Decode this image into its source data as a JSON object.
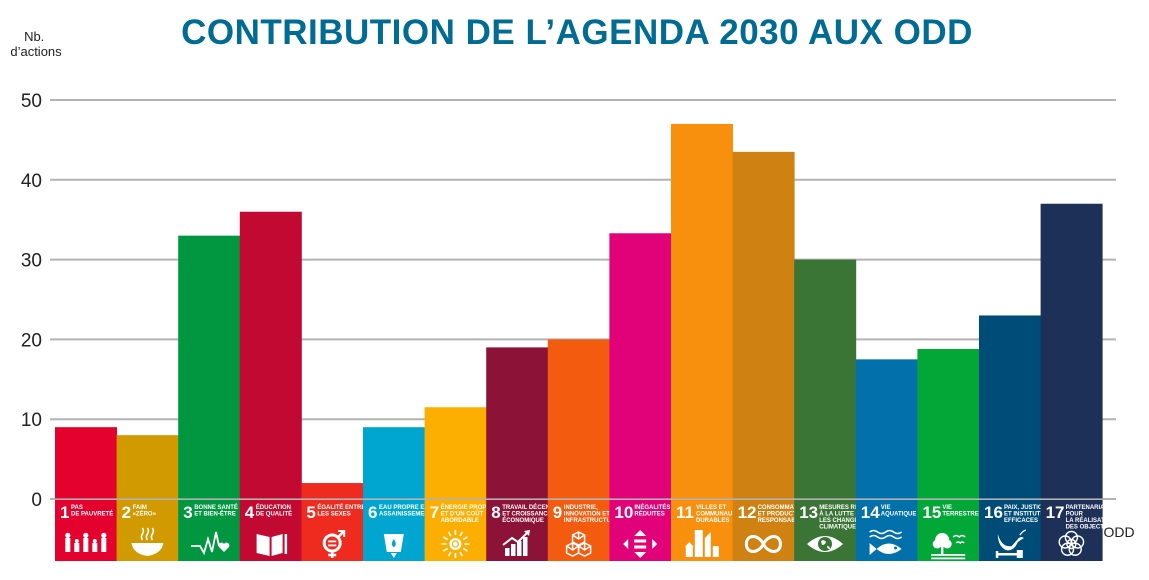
{
  "chart_data": {
    "type": "bar",
    "title": "CONTRIBUTION DE L’AGENDA 2030 AUX ODD",
    "ylabel": [
      "Nb.",
      "d’actions"
    ],
    "xlabel": "ODD",
    "ylim": [
      0,
      50
    ],
    "yticks": [
      0,
      10,
      20,
      30,
      40,
      50
    ],
    "grid": true,
    "legend": "none",
    "categories": [
      {
        "num": "1",
        "label": [
          "PAS",
          "DE PAUVRETÉ"
        ],
        "icon": "family-icon",
        "color": "#e5012d"
      },
      {
        "num": "2",
        "label": [
          "FAIM",
          "«ZÉRO»"
        ],
        "icon": "soup-bowl-icon",
        "color": "#d19a00"
      },
      {
        "num": "3",
        "label": [
          "BONNE SANTÉ",
          "ET BIEN-ÊTRE"
        ],
        "icon": "heartbeat-icon",
        "color": "#019640"
      },
      {
        "num": "4",
        "label": [
          "ÉDUCATION",
          "DE QUALITÉ"
        ],
        "icon": "book-icon",
        "color": "#c10931"
      },
      {
        "num": "5",
        "label": [
          "ÉGALITÉ ENTRE",
          "LES SEXES"
        ],
        "icon": "gender-equality-icon",
        "color": "#ef2b20"
      },
      {
        "num": "6",
        "label": [
          "EAU PROPRE ET",
          "ASSAINISSEMENT"
        ],
        "icon": "water-glass-icon",
        "color": "#00a6cf"
      },
      {
        "num": "7",
        "label": [
          "ÉNERGIE PROPRE",
          "ET D’UN COÛT",
          "ABORDABLE"
        ],
        "icon": "sun-power-icon",
        "color": "#fcaf00"
      },
      {
        "num": "8",
        "label": [
          "TRAVAIL DÉCENT",
          "ET CROISSANCE",
          "ÉCONOMIQUE"
        ],
        "icon": "growth-chart-icon",
        "color": "#8c1337"
      },
      {
        "num": "9",
        "label": [
          "INDUSTRIE,",
          "INNOVATION ET",
          "INFRASTRUCTURE"
        ],
        "icon": "cubes-icon",
        "color": "#f35c0f"
      },
      {
        "num": "10",
        "label": [
          "INÉGALITÉS",
          "RÉDUITES"
        ],
        "icon": "equality-arrows-icon",
        "color": "#e10178"
      },
      {
        "num": "11",
        "label": [
          "VILLES ET",
          "COMMUNAUTÉS",
          "DURABLES"
        ],
        "icon": "city-buildings-icon",
        "color": "#f8900d"
      },
      {
        "num": "12",
        "label": [
          "CONSOMMATION",
          "ET PRODUCTION",
          "RESPONSABLES"
        ],
        "icon": "infinity-icon",
        "color": "#cf8112"
      },
      {
        "num": "13",
        "label": [
          "MESURES RELATIVES",
          "À LA LUTTE CONTRE",
          "LES CHANGEMENTS",
          "CLIMATIQUES"
        ],
        "icon": "earth-eye-icon",
        "color": "#3b7536"
      },
      {
        "num": "14",
        "label": [
          "VIE",
          "AQUATIQUE"
        ],
        "icon": "fish-icon",
        "color": "#0270ab"
      },
      {
        "num": "15",
        "label": [
          "VIE",
          "TERRESTRE"
        ],
        "icon": "tree-birds-icon",
        "color": "#02a737"
      },
      {
        "num": "16",
        "label": [
          "PAIX, JUSTICE",
          "ET INSTITUTIONS",
          "EFFICACES"
        ],
        "icon": "dove-gavel-icon",
        "color": "#004c79"
      },
      {
        "num": "17",
        "label": [
          "PARTENARIATS",
          "POUR",
          "LA RÉALISATION",
          "DES OBJECTIFS"
        ],
        "icon": "partnership-rings-icon",
        "color": "#1c3058"
      }
    ],
    "values": [
      9,
      8,
      33,
      36,
      2,
      9,
      11.5,
      19,
      20,
      33.3,
      47,
      43.5,
      30,
      17.5,
      18.8,
      23,
      37
    ]
  },
  "colors": {
    "title": "#006c93",
    "grid": "#b3b3b3",
    "text": "#222222"
  }
}
